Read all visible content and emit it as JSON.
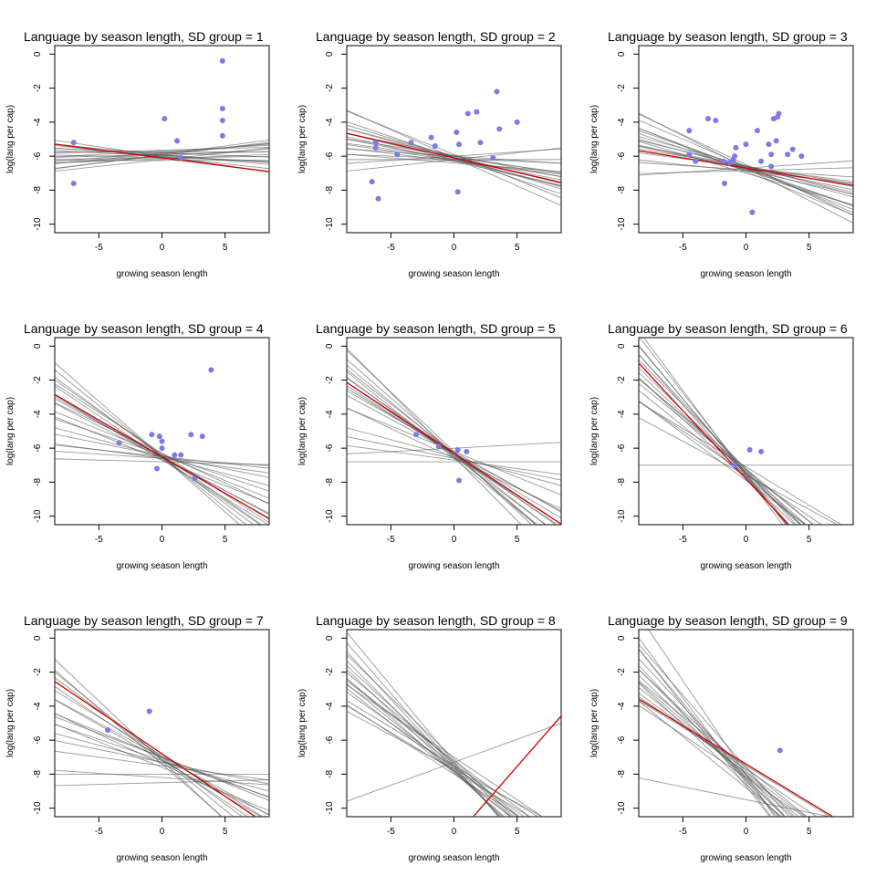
{
  "chart_data": [
    {
      "type": "scatter",
      "title": "Language by season length, SD group = 1",
      "xlabel": "growing season length",
      "ylabel": "log(lang per cap)",
      "xlim": [
        -8.5,
        8.5
      ],
      "ylim": [
        -10.5,
        0.5
      ],
      "xticks": [
        -5,
        0,
        5
      ],
      "yticks": [
        0,
        -2,
        -4,
        -6,
        -8,
        -10
      ],
      "points": [
        [
          -7,
          -5.2
        ],
        [
          -7,
          -7.6
        ],
        [
          0.2,
          -3.8
        ],
        [
          1.2,
          -5.1
        ],
        [
          1.5,
          -6.1
        ],
        [
          4.8,
          -0.4
        ],
        [
          4.8,
          -3.2
        ],
        [
          4.8,
          -3.9
        ],
        [
          4.8,
          -4.8
        ]
      ],
      "fit_line": {
        "intercept": -6.1,
        "slope": -0.095
      },
      "posterior_lines": [
        [
          -5.9,
          0.02
        ],
        [
          -6.0,
          0.05
        ],
        [
          -5.8,
          -0.03
        ],
        [
          -6.1,
          0.01
        ],
        [
          -5.7,
          0.04
        ],
        [
          -6.2,
          0.08
        ],
        [
          -5.95,
          -0.05
        ],
        [
          -5.85,
          0.07
        ],
        [
          -6.05,
          -0.08
        ],
        [
          -5.9,
          0.1
        ],
        [
          -6.0,
          -0.11
        ],
        [
          -5.75,
          0.0
        ],
        [
          -6.15,
          0.03
        ],
        [
          -5.8,
          0.06
        ],
        [
          -6.1,
          -0.02
        ],
        [
          -5.95,
          0.09
        ],
        [
          -6.0,
          -0.04
        ],
        [
          -5.65,
          0.02
        ],
        [
          -6.25,
          0.0
        ],
        [
          -5.9,
          -0.07
        ]
      ]
    },
    {
      "type": "scatter",
      "title": "Language by season length, SD group = 2",
      "xlabel": "growing season length",
      "ylabel": "log(lang per cap)",
      "xlim": [
        -8.5,
        8.5
      ],
      "ylim": [
        -10.5,
        0.5
      ],
      "xticks": [
        -5,
        0,
        5
      ],
      "yticks": [
        0,
        -2,
        -4,
        -6,
        -8,
        -10
      ],
      "points": [
        [
          -6.5,
          -7.5
        ],
        [
          -6.2,
          -5.2
        ],
        [
          -6.2,
          -5.5
        ],
        [
          -6.0,
          -8.5
        ],
        [
          -4.5,
          -5.9
        ],
        [
          -3.4,
          -5.2
        ],
        [
          -1.8,
          -4.9
        ],
        [
          -1.5,
          -5.4
        ],
        [
          0.2,
          -4.6
        ],
        [
          0.3,
          -8.1
        ],
        [
          0.4,
          -5.3
        ],
        [
          1.1,
          -3.5
        ],
        [
          1.8,
          -3.4
        ],
        [
          2.1,
          -5.2
        ],
        [
          3.1,
          -6.1
        ],
        [
          3.4,
          -2.2
        ],
        [
          3.6,
          -4.4
        ],
        [
          5.0,
          -4.0
        ]
      ],
      "fit_line": {
        "intercept": -6.1,
        "slope": -0.17
      },
      "posterior_lines": [
        [
          -6.1,
          -0.1
        ],
        [
          -6.2,
          -0.14
        ],
        [
          -6.0,
          -0.05
        ],
        [
          -6.3,
          -0.17
        ],
        [
          -6.1,
          -0.2
        ],
        [
          -5.9,
          -0.3
        ],
        [
          -6.2,
          0.08
        ],
        [
          -6.0,
          -0.12
        ],
        [
          -6.4,
          -0.06
        ],
        [
          -6.1,
          -0.25
        ],
        [
          -6.0,
          0.05
        ],
        [
          -6.2,
          -0.18
        ],
        [
          -6.3,
          -0.09
        ],
        [
          -5.95,
          -0.15
        ],
        [
          -6.15,
          -0.03
        ],
        [
          -6.05,
          -0.22
        ],
        [
          -6.25,
          -0.11
        ],
        [
          -6.1,
          -0.33
        ],
        [
          -6.2,
          0.0
        ],
        [
          -6.0,
          -0.19
        ]
      ]
    },
    {
      "type": "scatter",
      "title": "Language by season length, SD group = 3",
      "xlabel": "growing season length",
      "ylabel": "log(lang per cap)",
      "xlim": [
        -8.5,
        8.5
      ],
      "ylim": [
        -10.5,
        0.5
      ],
      "xticks": [
        -5,
        0,
        5
      ],
      "yticks": [
        0,
        -2,
        -4,
        -6,
        -8,
        -10
      ],
      "points": [
        [
          -4.5,
          -4.5
        ],
        [
          -4.5,
          -5.9
        ],
        [
          -4.0,
          -6.3
        ],
        [
          -3.0,
          -3.8
        ],
        [
          -2.4,
          -3.9
        ],
        [
          -1.8,
          -6.3
        ],
        [
          -1.7,
          -7.6
        ],
        [
          -1.3,
          -6.4
        ],
        [
          -1.0,
          -6.2
        ],
        [
          -0.9,
          -6.0
        ],
        [
          -0.8,
          -5.5
        ],
        [
          0.0,
          -5.3
        ],
        [
          0.5,
          -9.3
        ],
        [
          0.9,
          -4.5
        ],
        [
          1.2,
          -6.3
        ],
        [
          1.8,
          -5.3
        ],
        [
          2.0,
          -5.9
        ],
        [
          2.0,
          -6.6
        ],
        [
          2.2,
          -3.8
        ],
        [
          2.4,
          -5.1
        ],
        [
          2.5,
          -3.7
        ],
        [
          2.6,
          -3.5
        ],
        [
          3.3,
          -5.9
        ],
        [
          3.7,
          -5.6
        ],
        [
          4.4,
          -6.0
        ]
      ],
      "fit_line": {
        "intercept": -6.7,
        "slope": -0.12
      },
      "posterior_lines": [
        [
          -6.7,
          -0.2
        ],
        [
          -6.8,
          -0.25
        ],
        [
          -6.6,
          -0.12
        ],
        [
          -6.9,
          -0.3
        ],
        [
          -6.7,
          -0.15
        ],
        [
          -6.5,
          -0.35
        ],
        [
          -6.8,
          -0.05
        ],
        [
          -6.6,
          -0.18
        ],
        [
          -7.0,
          -0.22
        ],
        [
          -6.7,
          0.05
        ],
        [
          -6.75,
          -0.28
        ],
        [
          -6.65,
          -0.1
        ],
        [
          -6.9,
          -0.08
        ],
        [
          -6.6,
          -0.32
        ],
        [
          -6.8,
          -0.17
        ],
        [
          -6.7,
          -0.38
        ],
        [
          -6.55,
          -0.2
        ],
        [
          -6.85,
          0.02
        ],
        [
          -6.7,
          -0.26
        ],
        [
          -6.6,
          -0.14
        ]
      ]
    },
    {
      "type": "scatter",
      "title": "Language by season length, SD group = 4",
      "xlabel": "growing season length",
      "ylabel": "log(lang per cap)",
      "xlim": [
        -8.5,
        8.5
      ],
      "ylim": [
        -10.5,
        0.5
      ],
      "xticks": [
        -5,
        0,
        5
      ],
      "yticks": [
        0,
        -2,
        -4,
        -6,
        -8,
        -10
      ],
      "points": [
        [
          -3.4,
          -5.7
        ],
        [
          -0.8,
          -5.2
        ],
        [
          -0.4,
          -7.2
        ],
        [
          -0.2,
          -5.3
        ],
        [
          0.0,
          -5.6
        ],
        [
          0.0,
          -6.0
        ],
        [
          1.0,
          -6.4
        ],
        [
          1.5,
          -6.4
        ],
        [
          2.3,
          -5.2
        ],
        [
          2.6,
          -7.8
        ],
        [
          3.2,
          -5.3
        ],
        [
          3.9,
          -1.4
        ]
      ],
      "fit_line": {
        "intercept": -6.5,
        "slope": -0.43
      },
      "posterior_lines": [
        [
          -6.5,
          -0.4
        ],
        [
          -6.6,
          -0.5
        ],
        [
          -6.4,
          -0.3
        ],
        [
          -6.7,
          -0.45
        ],
        [
          -6.5,
          -0.6
        ],
        [
          -6.3,
          -0.35
        ],
        [
          -6.6,
          -0.1
        ],
        [
          -6.5,
          -0.2
        ],
        [
          -6.8,
          -0.02
        ],
        [
          -6.5,
          -0.55
        ],
        [
          -6.4,
          -0.25
        ],
        [
          -6.6,
          -0.38
        ],
        [
          -6.5,
          -0.08
        ],
        [
          -6.3,
          -0.48
        ],
        [
          -6.7,
          -0.3
        ],
        [
          -6.5,
          -0.65
        ],
        [
          -6.45,
          -0.15
        ],
        [
          -6.55,
          -0.42
        ],
        [
          -6.6,
          -0.05
        ],
        [
          -6.4,
          -0.52
        ]
      ]
    },
    {
      "type": "scatter",
      "title": "Language by season length, SD group = 5",
      "xlabel": "growing season length",
      "ylabel": "log(lang per cap)",
      "xlim": [
        -8.5,
        8.5
      ],
      "ylim": [
        -10.5,
        0.5
      ],
      "xticks": [
        -5,
        0,
        5
      ],
      "yticks": [
        0,
        -2,
        -4,
        -6,
        -8,
        -10
      ],
      "points": [
        [
          -3.0,
          -5.2
        ],
        [
          -1.2,
          -5.9
        ],
        [
          0.3,
          -6.1
        ],
        [
          0.4,
          -7.9
        ],
        [
          1.0,
          -6.2
        ]
      ],
      "fit_line": {
        "intercept": -6.3,
        "slope": -0.49
      },
      "posterior_lines": [
        [
          -6.3,
          -0.45
        ],
        [
          -6.5,
          -0.55
        ],
        [
          -6.2,
          -0.3
        ],
        [
          -6.6,
          -0.6
        ],
        [
          -6.3,
          -0.4
        ],
        [
          -6.0,
          0.04
        ],
        [
          -6.7,
          -0.1
        ],
        [
          -6.3,
          -0.65
        ],
        [
          -6.5,
          -0.2
        ],
        [
          -6.4,
          -0.5
        ],
        [
          -6.2,
          -0.7
        ],
        [
          -6.6,
          -0.35
        ],
        [
          -6.8,
          0.0
        ],
        [
          -6.3,
          -0.58
        ],
        [
          -6.4,
          -0.48
        ],
        [
          -6.2,
          -0.42
        ],
        [
          -6.5,
          -0.75
        ],
        [
          -6.6,
          -0.15
        ],
        [
          -6.3,
          -0.52
        ],
        [
          -6.4,
          -0.62
        ]
      ]
    },
    {
      "type": "scatter",
      "title": "Language by season length, SD group = 6",
      "xlabel": "growing season length",
      "ylabel": "log(lang per cap)",
      "xlim": [
        -8.5,
        8.5
      ],
      "ylim": [
        -10.5,
        0.5
      ],
      "xticks": [
        -5,
        0,
        5
      ],
      "yticks": [
        0,
        -2,
        -4,
        -6,
        -8,
        -10
      ],
      "points": [
        [
          -0.9,
          -7.0
        ],
        [
          0.3,
          -6.1
        ],
        [
          1.2,
          -6.2
        ]
      ],
      "fit_line": {
        "intercept": -7.8,
        "slope": -0.8
      },
      "posterior_lines": [
        [
          -7.5,
          -0.7
        ],
        [
          -7.8,
          -0.8
        ],
        [
          -7.3,
          -0.6
        ],
        [
          -7.6,
          -0.9
        ],
        [
          -7.9,
          -0.55
        ],
        [
          -7.2,
          -0.75
        ],
        [
          -7.0,
          0.0
        ],
        [
          -7.5,
          -0.5
        ],
        [
          -7.7,
          -0.85
        ],
        [
          -7.4,
          -0.65
        ],
        [
          -7.6,
          -1.0
        ],
        [
          -7.8,
          -0.7
        ],
        [
          -7.1,
          -0.45
        ],
        [
          -7.5,
          -0.95
        ],
        [
          -7.3,
          -0.8
        ],
        [
          -7.7,
          -0.6
        ],
        [
          -7.4,
          -0.72
        ],
        [
          -7.6,
          -0.4
        ],
        [
          -7.5,
          -0.88
        ],
        [
          -7.2,
          -0.62
        ]
      ]
    },
    {
      "type": "scatter",
      "title": "Language by season length, SD group = 7",
      "xlabel": "growing season length",
      "ylabel": "log(lang per cap)",
      "xlim": [
        -8.5,
        8.5
      ],
      "ylim": [
        -10.5,
        0.5
      ],
      "xticks": [
        -5,
        0,
        5
      ],
      "yticks": [
        0,
        -2,
        -4,
        -6,
        -8,
        -10
      ],
      "points": [
        [
          -4.3,
          -5.4
        ],
        [
          -1.0,
          -4.3
        ]
      ],
      "fit_line": {
        "intercept": -6.8,
        "slope": -0.5
      },
      "posterior_lines": [
        [
          -7.0,
          -0.3
        ],
        [
          -7.2,
          -0.25
        ],
        [
          -6.9,
          -0.45
        ],
        [
          -7.4,
          -0.35
        ],
        [
          -7.0,
          -0.55
        ],
        [
          -7.3,
          -0.2
        ],
        [
          -7.1,
          -0.6
        ],
        [
          -7.5,
          -0.1
        ],
        [
          -8.0,
          0.0
        ],
        [
          -7.0,
          -0.4
        ],
        [
          -7.2,
          -0.7
        ],
        [
          -7.6,
          -0.3
        ],
        [
          -8.5,
          0.02
        ],
        [
          -7.1,
          -0.5
        ],
        [
          -7.3,
          -0.15
        ],
        [
          -6.8,
          -0.5
        ],
        [
          -7.4,
          -0.65
        ],
        [
          -7.0,
          -0.28
        ],
        [
          -7.2,
          -0.42
        ],
        [
          -8.2,
          -0.05
        ]
      ]
    },
    {
      "type": "scatter",
      "title": "Language by season length, SD group = 8",
      "xlabel": "growing season length",
      "ylabel": "log(lang per cap)",
      "xlim": [
        -8.5,
        8.5
      ],
      "ylim": [
        -10.5,
        0.5
      ],
      "xticks": [
        -5,
        0,
        5
      ],
      "yticks": [
        0,
        -2,
        -4,
        -6,
        -8,
        -10
      ],
      "points": [],
      "fit_line": {
        "intercept": -11.8,
        "slope": 0.85
      },
      "posterior_lines": [
        [
          -7.5,
          -0.6
        ],
        [
          -7.8,
          -0.7
        ],
        [
          -7.2,
          -0.55
        ],
        [
          -7.6,
          -0.8
        ],
        [
          -7.9,
          -0.65
        ],
        [
          -7.0,
          -0.5
        ],
        [
          -7.7,
          -0.75
        ],
        [
          -7.3,
          -0.9
        ],
        [
          -7.5,
          -0.45
        ],
        [
          -7.8,
          -0.6
        ],
        [
          -7.4,
          -0.68
        ],
        [
          -7.6,
          -0.52
        ],
        [
          -7.1,
          -0.72
        ],
        [
          -7.9,
          -0.58
        ],
        [
          -7.5,
          -0.85
        ],
        [
          -8.0,
          -0.48
        ],
        [
          -7.3,
          -0.62
        ],
        [
          -7.7,
          -0.4
        ],
        [
          -7.3,
          0.27
        ],
        [
          -7.8,
          -0.45
        ]
      ]
    },
    {
      "type": "scatter",
      "title": "Language by season length, SD group = 9",
      "xlabel": "growing season length",
      "ylabel": "log(lang per cap)",
      "xlim": [
        -8.5,
        8.5
      ],
      "ylim": [
        -10.5,
        0.5
      ],
      "xticks": [
        -5,
        0,
        5
      ],
      "yticks": [
        0,
        -2,
        -4,
        -6,
        -8,
        -10
      ],
      "points": [
        [
          2.7,
          -6.6
        ]
      ],
      "fit_line": {
        "intercept": -7.4,
        "slope": -0.45
      },
      "posterior_lines": [
        [
          -8.0,
          -0.8
        ],
        [
          -8.3,
          -0.9
        ],
        [
          -7.8,
          -0.7
        ],
        [
          -8.5,
          -1.0
        ],
        [
          -8.0,
          -0.6
        ],
        [
          -7.6,
          -0.85
        ],
        [
          -8.2,
          -0.75
        ],
        [
          -8.7,
          -0.95
        ],
        [
          -7.9,
          -0.55
        ],
        [
          -8.4,
          -0.8
        ],
        [
          -8.1,
          -0.65
        ],
        [
          -7.7,
          -0.5
        ],
        [
          -8.6,
          -0.7
        ],
        [
          -7.5,
          -0.45
        ],
        [
          -8.0,
          -1.1
        ],
        [
          -8.8,
          -0.6
        ],
        [
          -8.3,
          -0.72
        ],
        [
          -9.5,
          -0.15
        ],
        [
          -7.6,
          -0.6
        ],
        [
          -8.2,
          -0.5
        ]
      ]
    }
  ]
}
